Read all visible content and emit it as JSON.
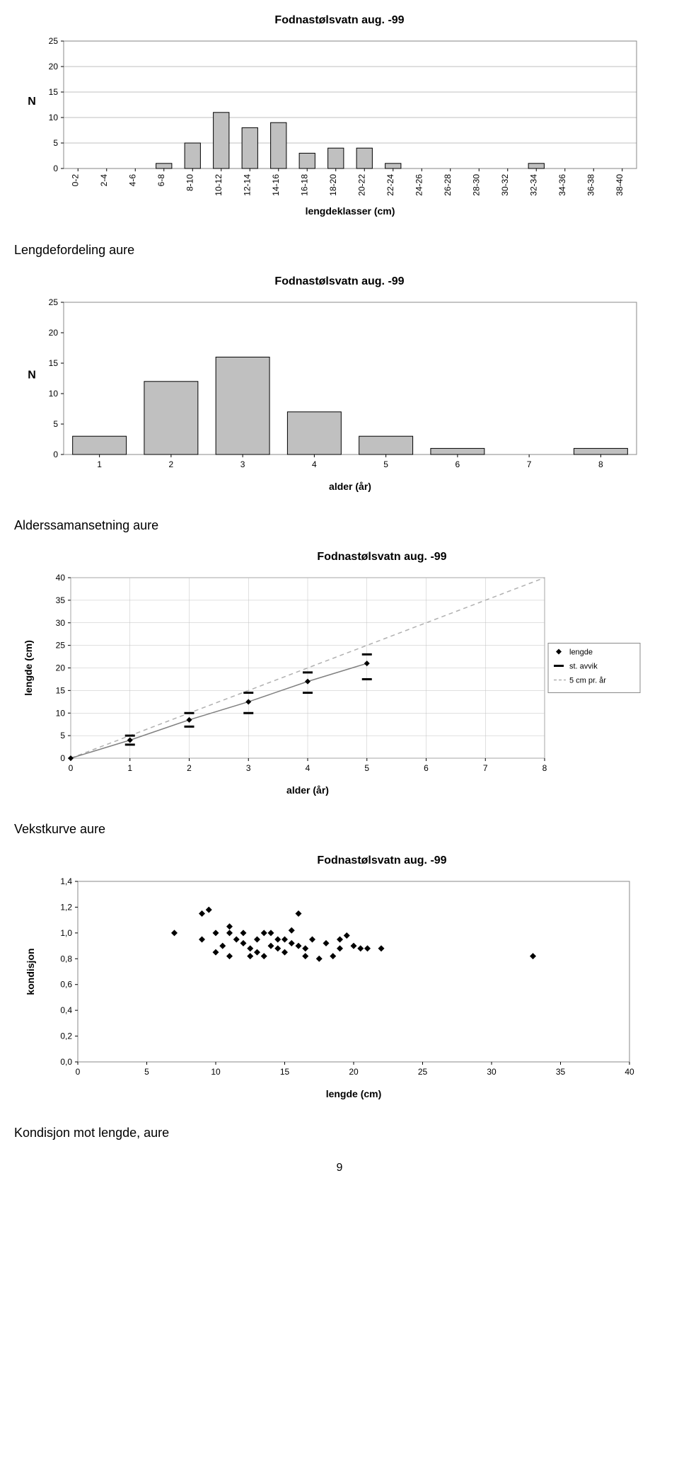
{
  "page_number": "9",
  "chart1": {
    "title": "Fodnastølsvatn aug. -99",
    "type": "bar",
    "y_axis_label": "N",
    "x_axis_label": "lengdeklasser (cm)",
    "ylim": [
      0,
      25
    ],
    "ytick_step": 5,
    "categories": [
      "0-2",
      "2-4",
      "4-6",
      "6-8",
      "8-10",
      "10-12",
      "12-14",
      "14-16",
      "16-18",
      "18-20",
      "20-22",
      "22-24",
      "24-26",
      "26-28",
      "28-30",
      "30-32",
      "32-34",
      "34-36",
      "36-38",
      "38-40"
    ],
    "values": [
      0,
      0,
      0,
      1,
      5,
      11,
      8,
      9,
      3,
      4,
      4,
      1,
      0,
      0,
      0,
      0,
      1,
      0,
      0,
      0
    ],
    "bar_fill": "#c0c0c0",
    "bar_stroke": "#000000",
    "grid_color": "#808080",
    "background": "#ffffff",
    "title_fontsize": 16,
    "tick_fontsize": 12,
    "label_fontsize": 14
  },
  "caption1": "Lengdefordeling aure",
  "chart2": {
    "title": "Fodnastølsvatn aug. -99",
    "type": "bar",
    "y_axis_label": "N",
    "x_axis_label": "alder (år)",
    "ylim": [
      0,
      25
    ],
    "ytick_step": 5,
    "categories": [
      "1",
      "2",
      "3",
      "4",
      "5",
      "6",
      "7",
      "8"
    ],
    "values": [
      3,
      12,
      16,
      7,
      3,
      1,
      0,
      1
    ],
    "bar_fill": "#c0c0c0",
    "bar_stroke": "#000000",
    "background": "#ffffff",
    "title_fontsize": 16,
    "tick_fontsize": 12,
    "label_fontsize": 14
  },
  "caption2": "Alderssamansetning aure",
  "chart3": {
    "title": "Fodnastølsvatn aug. -99",
    "type": "scatter-line",
    "y_axis_label": "lengde (cm)",
    "x_axis_label": "alder (år)",
    "xlim": [
      0,
      8
    ],
    "xtick_step": 1,
    "ylim": [
      0,
      40
    ],
    "ytick_step": 5,
    "lengde_x": [
      0,
      1,
      2,
      3,
      4,
      5
    ],
    "lengde_y": [
      0,
      4,
      8.5,
      12.5,
      17,
      21
    ],
    "stavvik_x": [
      1,
      2,
      3,
      4,
      5
    ],
    "stavvik_lo": [
      3,
      7,
      10,
      14.5,
      17.5
    ],
    "stavvik_hi": [
      5,
      10,
      14.5,
      19,
      23
    ],
    "ref_line": {
      "x0": 0,
      "y0": 0,
      "x1": 8,
      "y1": 40
    },
    "legend": {
      "items": [
        {
          "label": "lengde",
          "marker": "diamond"
        },
        {
          "label": "st. avvik",
          "marker": "dash"
        },
        {
          "label": "5 cm pr. år",
          "marker": "dashed-line"
        }
      ]
    },
    "grid_color": "#c0c0c0",
    "line_color": "#808080",
    "marker_color": "#000000",
    "ref_color": "#b0b0b0",
    "title_fontsize": 16
  },
  "caption3": "Vekstkurve aure",
  "chart4": {
    "title": "Fodnastølsvatn aug. -99",
    "type": "scatter",
    "y_axis_label": "kondisjon",
    "x_axis_label": "lengde (cm)",
    "xlim": [
      0,
      40
    ],
    "xtick_step": 5,
    "ylim": [
      0.0,
      1.4
    ],
    "ytick_step": 0.2,
    "yticks_labels": [
      "0,0",
      "0,2",
      "0,4",
      "0,6",
      "0,8",
      "1,0",
      "1,2",
      "1,4"
    ],
    "points": [
      [
        7,
        1.0
      ],
      [
        9,
        1.15
      ],
      [
        9,
        0.95
      ],
      [
        9.5,
        1.18
      ],
      [
        10,
        1.0
      ],
      [
        10,
        0.85
      ],
      [
        10.5,
        0.9
      ],
      [
        11,
        1.05
      ],
      [
        11,
        1.0
      ],
      [
        11,
        0.82
      ],
      [
        11.5,
        0.95
      ],
      [
        12,
        0.92
      ],
      [
        12,
        1.0
      ],
      [
        12.5,
        0.88
      ],
      [
        12.5,
        0.82
      ],
      [
        13,
        0.85
      ],
      [
        13,
        0.95
      ],
      [
        13.5,
        1.0
      ],
      [
        13.5,
        0.82
      ],
      [
        14,
        0.9
      ],
      [
        14,
        1.0
      ],
      [
        14.5,
        0.88
      ],
      [
        14.5,
        0.95
      ],
      [
        15,
        0.95
      ],
      [
        15,
        0.85
      ],
      [
        15.5,
        1.02
      ],
      [
        15.5,
        0.92
      ],
      [
        16,
        1.15
      ],
      [
        16,
        0.9
      ],
      [
        16.5,
        0.88
      ],
      [
        16.5,
        0.82
      ],
      [
        17,
        0.95
      ],
      [
        17.5,
        0.8
      ],
      [
        18,
        0.92
      ],
      [
        18.5,
        0.82
      ],
      [
        19,
        0.95
      ],
      [
        19,
        0.88
      ],
      [
        19.5,
        0.98
      ],
      [
        20,
        0.9
      ],
      [
        20.5,
        0.88
      ],
      [
        21,
        0.88
      ],
      [
        22,
        0.88
      ],
      [
        33,
        0.82
      ]
    ],
    "marker_color": "#000000",
    "title_fontsize": 16
  },
  "caption4": "Kondisjon mot lengde, aure"
}
